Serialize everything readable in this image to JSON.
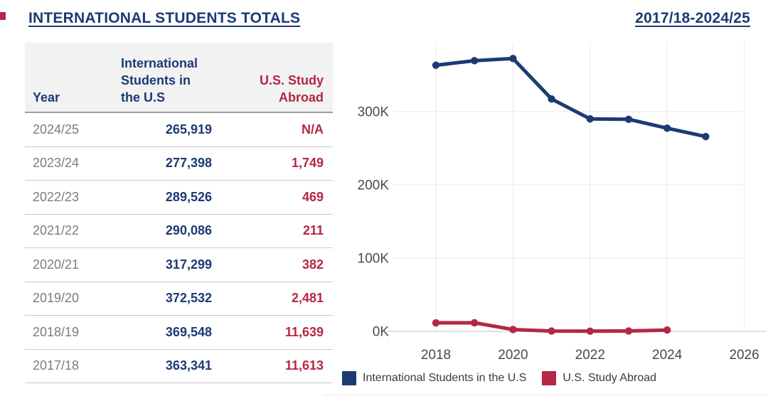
{
  "titles": {
    "left": "INTERNATIONAL STUDENTS TOTALS",
    "right": "2017/18-2024/25"
  },
  "colors": {
    "navy": "#1d3a73",
    "crimson": "#b52745",
    "year_gray": "#7c7c80",
    "tick_label": "#4a4a4a",
    "gridline": "#e9e9e9",
    "axis_line": "#d5d5d5",
    "header_bg": "#f2f2f2"
  },
  "table": {
    "columns": [
      "Year",
      "International Students in the U.S",
      "U.S. Study Abroad"
    ],
    "rows": [
      {
        "year": "2024/25",
        "intl": "265,919",
        "abroad": "N/A"
      },
      {
        "year": "2023/24",
        "intl": "277,398",
        "abroad": "1,749"
      },
      {
        "year": "2022/23",
        "intl": "289,526",
        "abroad": "469"
      },
      {
        "year": "2021/22",
        "intl": "290,086",
        "abroad": "211"
      },
      {
        "year": "2020/21",
        "intl": "317,299",
        "abroad": "382"
      },
      {
        "year": "2019/20",
        "intl": "372,532",
        "abroad": "2,481"
      },
      {
        "year": "2018/19",
        "intl": "369,548",
        "abroad": "11,639"
      },
      {
        "year": "2017/18",
        "intl": "363,341",
        "abroad": "11,613"
      }
    ]
  },
  "chart_data": {
    "type": "line",
    "title": "2017/18-2024/25",
    "x": [
      2018,
      2019,
      2020,
      2021,
      2022,
      2023,
      2024,
      2025
    ],
    "series": [
      {
        "name": "International Students in the U.S",
        "color": "#1d3a73",
        "values": [
          363341,
          369548,
          372532,
          317299,
          290086,
          289526,
          277398,
          265919
        ]
      },
      {
        "name": "U.S. Study Abroad",
        "color": "#b52745",
        "values": [
          11613,
          11639,
          2481,
          382,
          211,
          469,
          1749,
          null
        ]
      }
    ],
    "x_ticks": [
      2018,
      2020,
      2022,
      2024,
      2026
    ],
    "y_ticks": [
      {
        "value": 0,
        "label": "0K"
      },
      {
        "value": 100000,
        "label": "100K"
      },
      {
        "value": 200000,
        "label": "200K"
      },
      {
        "value": 300000,
        "label": "300K"
      }
    ],
    "xlim": [
      2016.9,
      2026.6
    ],
    "ylim": [
      0,
      393000
    ],
    "grid": true,
    "legend_position": "bottom"
  }
}
